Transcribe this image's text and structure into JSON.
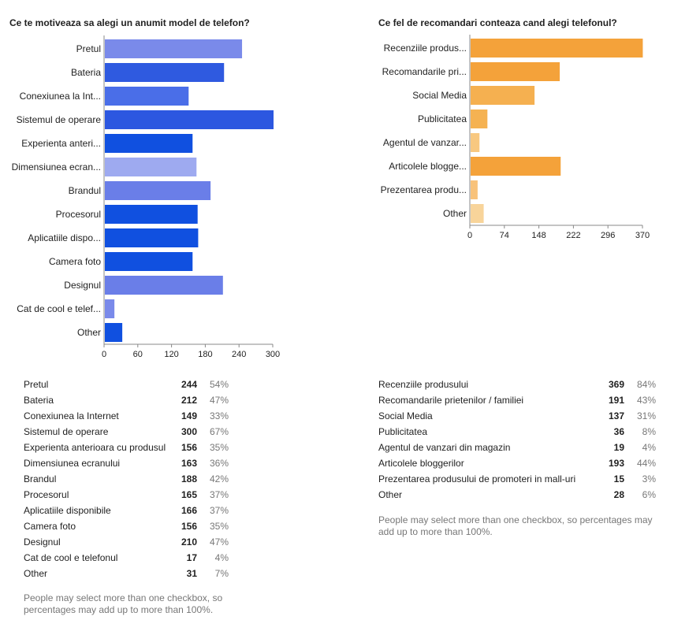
{
  "chart_data": [
    {
      "type": "bar",
      "title": "Ce te motiveaza sa alegi un anumit model de telefon?",
      "categories": [
        "Pretul",
        "Bateria",
        "Conexiunea la Int...",
        "Sistemul de operare",
        "Experienta anteri...",
        "Dimensiunea ecran...",
        "Brandul",
        "Procesorul",
        "Aplicatiile dispo...",
        "Camera foto",
        "Designul",
        "Cat de cool e telef...",
        "Other"
      ],
      "values": [
        244,
        212,
        149,
        300,
        156,
        163,
        188,
        165,
        166,
        156,
        210,
        17,
        31
      ],
      "xticks": [
        "0",
        "60",
        "120",
        "180",
        "240",
        "300"
      ],
      "xlim": [
        0,
        300
      ],
      "bar_colors": [
        "#7a8aea",
        "#2f5ae0",
        "#4a6ee8",
        "#2c57e0",
        "#1050e0",
        "#9eaaf0",
        "#6a7ee8",
        "#1050e0",
        "#1050e0",
        "#1050e0",
        "#6a7ee8",
        "#7a8aea",
        "#1050e0"
      ]
    },
    {
      "type": "bar",
      "title": "Ce fel de recomandari conteaza cand alegi telefonul?",
      "categories": [
        "Recenziile produs...",
        "Recomandarile pri...",
        "Social Media",
        "Publicitatea",
        "Agentul de vanzar...",
        "Articolele blogge...",
        "Prezentarea produ...",
        "Other"
      ],
      "values": [
        369,
        191,
        137,
        36,
        19,
        193,
        15,
        28
      ],
      "xticks": [
        "0",
        "74",
        "148",
        "222",
        "296",
        "370"
      ],
      "xlim": [
        0,
        370
      ],
      "bar_colors": [
        "#f4a23a",
        "#f4a23a",
        "#f5b050",
        "#f5b252",
        "#f8c880",
        "#f4a23a",
        "#f8c27a",
        "#f8d49a"
      ]
    }
  ],
  "left_table": {
    "rows": [
      {
        "label": "Pretul",
        "count": "244",
        "pct": "54%"
      },
      {
        "label": "Bateria",
        "count": "212",
        "pct": "47%"
      },
      {
        "label": "Conexiunea la Internet",
        "count": "149",
        "pct": "33%"
      },
      {
        "label": "Sistemul de operare",
        "count": "300",
        "pct": "67%"
      },
      {
        "label": "Experienta anterioara cu produsul",
        "count": "156",
        "pct": "35%"
      },
      {
        "label": "Dimensiunea ecranului",
        "count": "163",
        "pct": "36%"
      },
      {
        "label": "Brandul",
        "count": "188",
        "pct": "42%"
      },
      {
        "label": "Procesorul",
        "count": "165",
        "pct": "37%"
      },
      {
        "label": "Aplicatiile disponibile",
        "count": "166",
        "pct": "37%"
      },
      {
        "label": "Camera foto",
        "count": "156",
        "pct": "35%"
      },
      {
        "label": "Designul",
        "count": "210",
        "pct": "47%"
      },
      {
        "label": "Cat de cool e telefonul",
        "count": "17",
        "pct": "4%"
      },
      {
        "label": "Other",
        "count": "31",
        "pct": "7%"
      }
    ],
    "note": "People may select more than one checkbox, so percentages may add up to more than 100%."
  },
  "right_table": {
    "rows": [
      {
        "label": "Recenziile produsului",
        "count": "369",
        "pct": "84%"
      },
      {
        "label": "Recomandarile prietenilor / familiei",
        "count": "191",
        "pct": "43%"
      },
      {
        "label": "Social Media",
        "count": "137",
        "pct": "31%"
      },
      {
        "label": "Publicitatea",
        "count": "36",
        "pct": "8%"
      },
      {
        "label": "Agentul de vanzari din magazin",
        "count": "19",
        "pct": "4%"
      },
      {
        "label": "Articolele bloggerilor",
        "count": "193",
        "pct": "44%"
      },
      {
        "label": "Prezentarea produsului de promoteri in mall-uri",
        "count": "15",
        "pct": "3%"
      },
      {
        "label": "Other",
        "count": "28",
        "pct": "6%"
      }
    ],
    "note": "People may select more than one checkbox, so percentages may add up to more than 100%."
  }
}
